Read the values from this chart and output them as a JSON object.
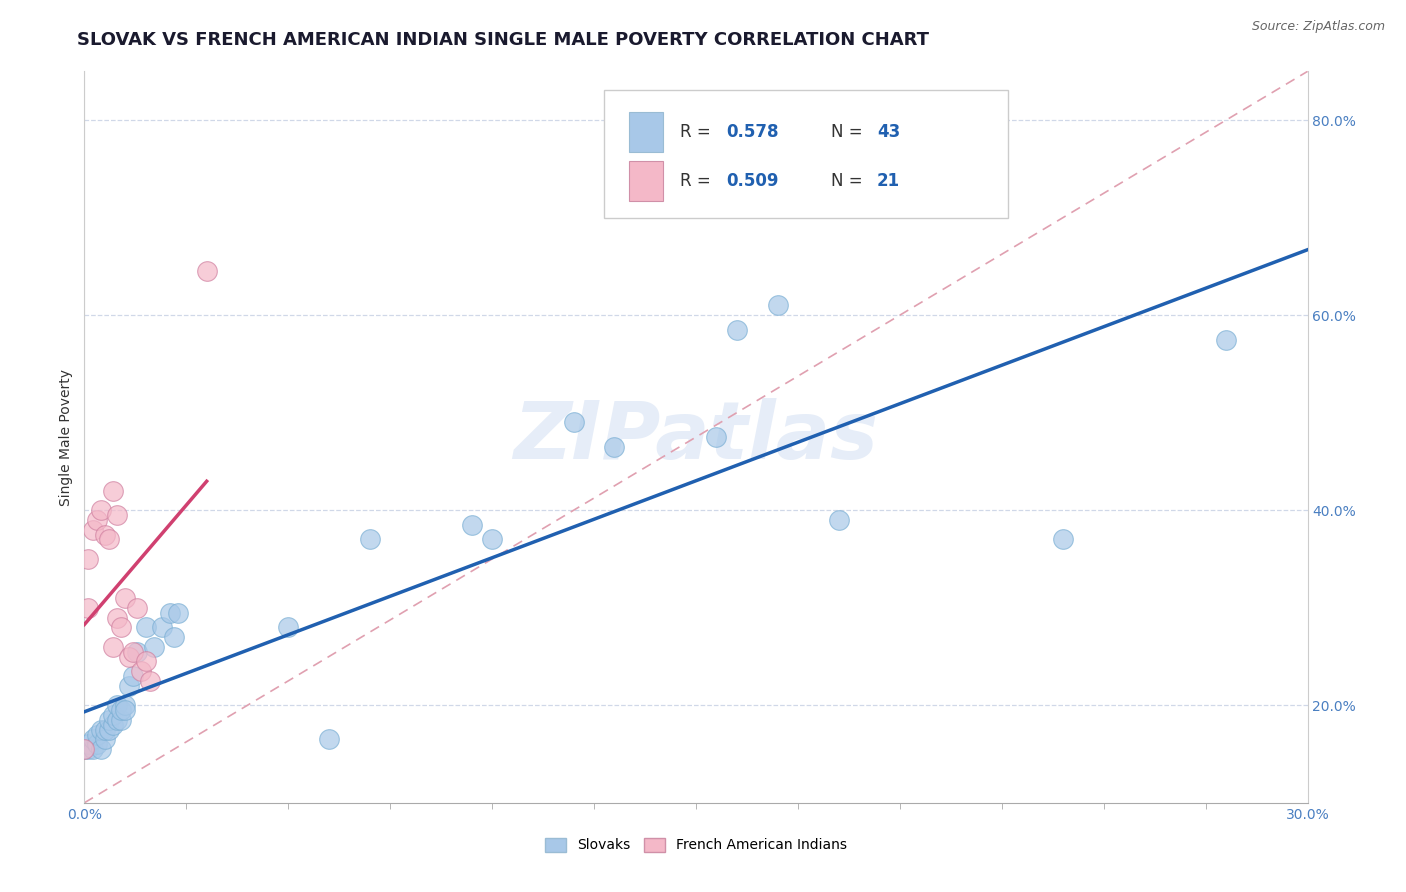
{
  "title": "SLOVAK VS FRENCH AMERICAN INDIAN SINGLE MALE POVERTY CORRELATION CHART",
  "source": "Source: ZipAtlas.com",
  "ylabel": "Single Male Poverty",
  "watermark": "ZIPatlas",
  "legend_slovak_r": "0.578",
  "legend_slovak_n": "43",
  "legend_french_r": "0.509",
  "legend_french_n": "21",
  "legend_label_slovak": "Slovaks",
  "legend_label_french": "French American Indians",
  "slovak_color": "#a8c8e8",
  "french_color": "#f4b8c8",
  "slovak_line_color": "#2060b0",
  "french_line_color": "#d04070",
  "diag_line_color": "#e0a0b0",
  "grid_color": "#d0d8e8",
  "background_color": "#ffffff",
  "tick_color": "#4a7fc1",
  "title_color": "#1a1a2e",
  "ylabel_color": "#333333",
  "xlim": [
    0.0,
    0.3
  ],
  "ylim": [
    0.1,
    0.85
  ],
  "yticks": [
    0.2,
    0.4,
    0.6,
    0.8
  ],
  "ytick_labels": [
    "20.0%",
    "40.0%",
    "60.0%",
    "80.0%"
  ],
  "xtick_labels": [
    "0.0%",
    "30.0%"
  ],
  "title_fontsize": 13,
  "axis_label_fontsize": 10,
  "tick_fontsize": 10,
  "source_fontsize": 9,
  "slovak_x": [
    0.0,
    0.001,
    0.001,
    0.002,
    0.002,
    0.003,
    0.003,
    0.004,
    0.004,
    0.005,
    0.005,
    0.006,
    0.006,
    0.007,
    0.007,
    0.008,
    0.008,
    0.009,
    0.009,
    0.01,
    0.01,
    0.011,
    0.012,
    0.013,
    0.015,
    0.017,
    0.019,
    0.021,
    0.022,
    0.023,
    0.05,
    0.06,
    0.07,
    0.095,
    0.1,
    0.12,
    0.13,
    0.155,
    0.16,
    0.17,
    0.185,
    0.24,
    0.28
  ],
  "slovak_y": [
    0.155,
    0.155,
    0.16,
    0.155,
    0.165,
    0.16,
    0.17,
    0.155,
    0.175,
    0.165,
    0.175,
    0.175,
    0.185,
    0.18,
    0.19,
    0.185,
    0.2,
    0.185,
    0.195,
    0.2,
    0.195,
    0.22,
    0.23,
    0.255,
    0.28,
    0.26,
    0.28,
    0.295,
    0.27,
    0.295,
    0.28,
    0.165,
    0.37,
    0.385,
    0.37,
    0.49,
    0.465,
    0.475,
    0.585,
    0.61,
    0.39,
    0.37,
    0.575
  ],
  "french_x": [
    0.0,
    0.001,
    0.001,
    0.002,
    0.003,
    0.004,
    0.005,
    0.006,
    0.007,
    0.007,
    0.008,
    0.008,
    0.009,
    0.01,
    0.011,
    0.012,
    0.013,
    0.014,
    0.015,
    0.016,
    0.03
  ],
  "french_y": [
    0.155,
    0.3,
    0.35,
    0.38,
    0.39,
    0.4,
    0.375,
    0.37,
    0.26,
    0.42,
    0.29,
    0.395,
    0.28,
    0.31,
    0.25,
    0.255,
    0.3,
    0.235,
    0.245,
    0.225,
    0.645
  ]
}
